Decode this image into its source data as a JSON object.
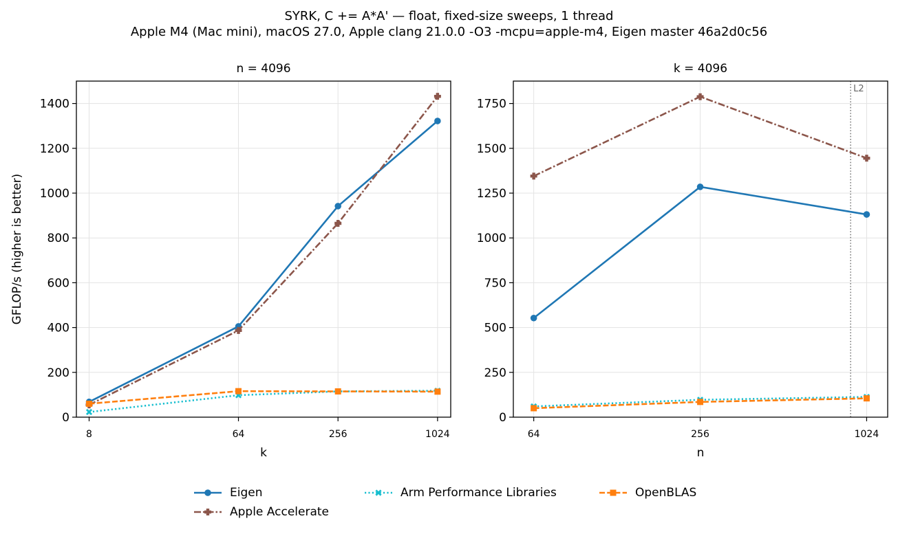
{
  "title_line1": "SYRK, C += A*A' — float, fixed-size sweeps, 1 thread",
  "title_line2": "Apple M4 (Mac mini), macOS 27.0, Apple clang 21.0.0 -O3 -mcpu=apple-m4, Eigen master 46a2d0c56",
  "legend": [
    {
      "name": "Eigen",
      "color": "#1f77b4",
      "dash": "solid",
      "marker": "circle"
    },
    {
      "name": "Apple Accelerate",
      "color": "#8c564b",
      "dash": "dashdot",
      "marker": "plus"
    },
    {
      "name": "Arm Performance Libraries",
      "color": "#17becf",
      "dash": "dotted",
      "marker": "x"
    },
    {
      "name": "OpenBLAS",
      "color": "#ff7f0e",
      "dash": "dashed",
      "marker": "square"
    }
  ],
  "chart_data": [
    {
      "type": "line",
      "title": "n = 4096",
      "xlabel": "k",
      "ylabel": "GFLOP/s (higher is better)",
      "xscale": "log2",
      "x": [
        8,
        64,
        256,
        1024
      ],
      "xticklabels": [
        "8",
        "64",
        "256",
        "1024"
      ],
      "xlim": [
        8,
        1024
      ],
      "ylim": [
        0,
        1500
      ],
      "yticks": [
        0,
        200,
        400,
        600,
        800,
        1000,
        1200,
        1400
      ],
      "grid": true,
      "series": [
        {
          "name": "Eigen",
          "values": [
            68,
            405,
            942,
            1322
          ]
        },
        {
          "name": "Apple Accelerate",
          "values": [
            55,
            387,
            865,
            1432
          ]
        },
        {
          "name": "Arm Performance Libraries",
          "values": [
            23,
            98,
            115,
            118
          ]
        },
        {
          "name": "OpenBLAS",
          "values": [
            60,
            116,
            115,
            114
          ]
        }
      ]
    },
    {
      "type": "line",
      "title": "k = 4096",
      "xlabel": "n",
      "ylabel": "",
      "xscale": "log2",
      "x": [
        64,
        256,
        1024
      ],
      "xticklabels": [
        "64",
        "256",
        "1024"
      ],
      "xlim": [
        64,
        1024
      ],
      "ylim": [
        0,
        1875
      ],
      "yticks": [
        0,
        250,
        500,
        750,
        1000,
        1250,
        1500,
        1750
      ],
      "grid": true,
      "vline": {
        "x": 896,
        "label": "L2"
      },
      "series": [
        {
          "name": "Eigen",
          "values": [
            553,
            1285,
            1131
          ]
        },
        {
          "name": "Apple Accelerate",
          "values": [
            1345,
            1788,
            1445
          ]
        },
        {
          "name": "Arm Performance Libraries",
          "values": [
            60,
            97,
            113
          ]
        },
        {
          "name": "OpenBLAS",
          "values": [
            50,
            85,
            105
          ]
        }
      ]
    }
  ]
}
